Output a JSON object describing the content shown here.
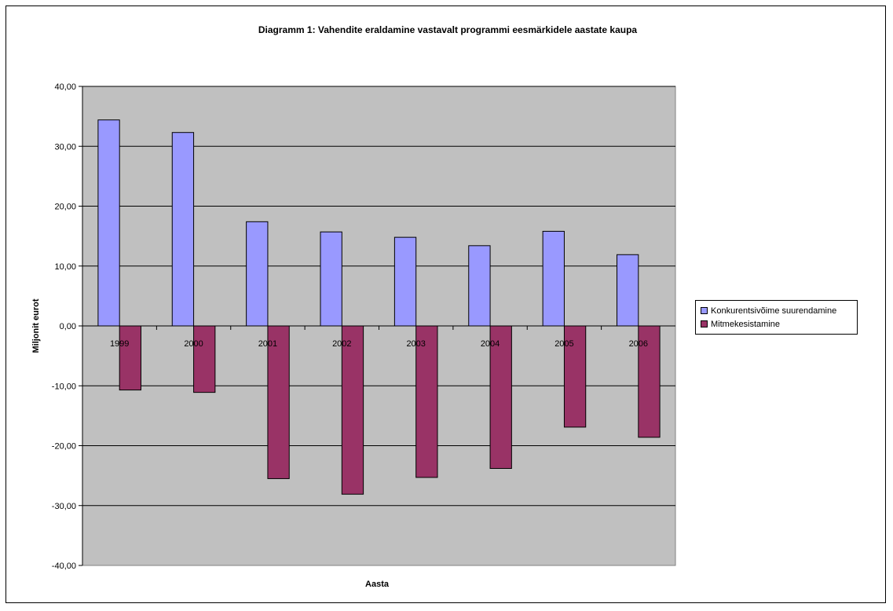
{
  "chart_data": {
    "type": "bar",
    "title": "Diagramm 1: Vahendite eraldamine vastavalt programmi eesmärkidele aastate kaupa",
    "xlabel": "Aasta",
    "ylabel": "Miljonit eurot",
    "categories": [
      "1999",
      "2000",
      "2001",
      "2002",
      "2003",
      "2004",
      "2005",
      "2006"
    ],
    "series": [
      {
        "name": "Konkurentsivõime suurendamine",
        "color": "#9999ff",
        "values": [
          34.4,
          32.3,
          17.4,
          15.7,
          14.8,
          13.4,
          15.8,
          11.9
        ]
      },
      {
        "name": "Mitmekesistamine",
        "color": "#993366",
        "values": [
          -10.7,
          -11.1,
          -25.5,
          -28.1,
          -25.3,
          -23.8,
          -16.9,
          -18.6
        ]
      }
    ],
    "ylim": [
      -40,
      40
    ],
    "yticks": [
      "-40,00",
      "-30,00",
      "-20,00",
      "-10,00",
      "0,00",
      "10,00",
      "20,00",
      "30,00",
      "40,00"
    ],
    "grid": true,
    "plot_background": "#c0c0c0",
    "legend_position": "right"
  }
}
